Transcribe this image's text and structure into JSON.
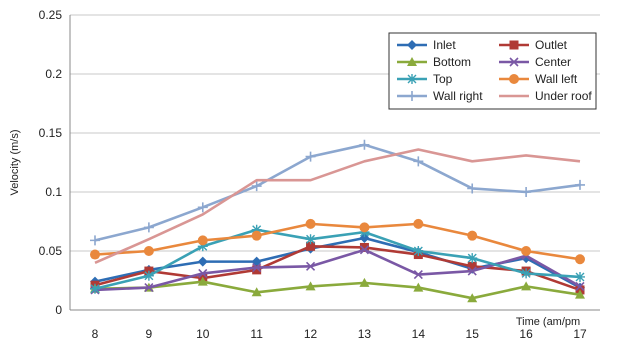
{
  "chart_data": {
    "type": "line",
    "title": "",
    "xlabel": "Time (am/pm",
    "ylabel": "Velocity (m/s)",
    "x": [
      "8",
      "9",
      "10",
      "11",
      "12",
      "13",
      "14",
      "15",
      "16",
      "17"
    ],
    "ylim": [
      0,
      0.25
    ],
    "yticks": [
      "0",
      "0.05",
      "0.1",
      "0.15",
      "0.2",
      "0.25"
    ],
    "grid": "horizontal",
    "legend_position": "top-right",
    "series": [
      {
        "name": "Inlet",
        "color": "#2E6DB4",
        "marker": "diamond",
        "values": [
          0.024,
          0.034,
          0.041,
          0.041,
          0.052,
          0.061,
          0.049,
          0.035,
          0.044,
          0.019
        ]
      },
      {
        "name": "Outlet",
        "color": "#B03A35",
        "marker": "square",
        "values": [
          0.021,
          0.033,
          0.027,
          0.034,
          0.054,
          0.053,
          0.047,
          0.037,
          0.033,
          0.017
        ]
      },
      {
        "name": "Bottom",
        "color": "#8AAA3C",
        "marker": "triangle",
        "values": [
          0.018,
          0.019,
          0.024,
          0.015,
          0.02,
          0.023,
          0.019,
          0.01,
          0.02,
          0.013
        ]
      },
      {
        "name": "Center",
        "color": "#7A58A5",
        "marker": "x",
        "values": [
          0.017,
          0.019,
          0.031,
          0.036,
          0.037,
          0.051,
          0.03,
          0.033,
          0.046,
          0.02
        ]
      },
      {
        "name": "Top",
        "color": "#3AA1B5",
        "marker": "asterisk",
        "values": [
          0.018,
          0.029,
          0.054,
          0.068,
          0.06,
          0.066,
          0.05,
          0.044,
          0.031,
          0.028
        ]
      },
      {
        "name": "Wall left",
        "color": "#E9883D",
        "marker": "circle",
        "values": [
          0.047,
          0.05,
          0.059,
          0.063,
          0.073,
          0.07,
          0.073,
          0.063,
          0.05,
          0.043
        ]
      },
      {
        "name": "Wall right",
        "color": "#8CA7CF",
        "marker": "plus",
        "values": [
          0.059,
          0.07,
          0.087,
          0.105,
          0.13,
          0.14,
          0.126,
          0.103,
          0.1,
          0.106
        ]
      },
      {
        "name": "Under roof",
        "color": "#D99694",
        "marker": "none",
        "values": [
          0.04,
          0.06,
          0.081,
          0.11,
          0.11,
          0.126,
          0.136,
          0.126,
          0.131,
          0.126
        ]
      }
    ]
  }
}
